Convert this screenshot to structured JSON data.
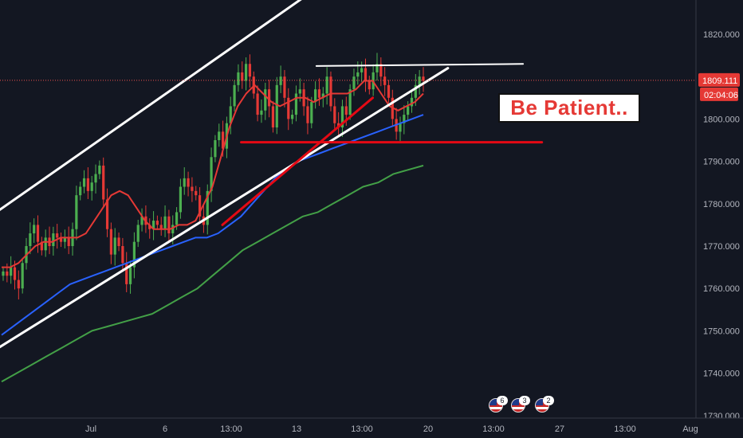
{
  "chart_data": {
    "type": "candlestick",
    "title": "",
    "ylim": [
      1730,
      1825
    ],
    "price_scale": {
      "ticks": [
        "1820.000",
        "1810.000",
        "1800.000",
        "1790.000",
        "1780.000",
        "1770.000",
        "1760.000",
        "1750.000",
        "1740.000",
        "1730.000"
      ],
      "current_price": "1809.111",
      "countdown": "02:04:06"
    },
    "time_scale": {
      "ticks": [
        "Jul",
        "6",
        "13:00",
        "13",
        "13:00",
        "20",
        "13:00",
        "27",
        "13:00",
        "Aug"
      ]
    },
    "ohlc_close_path": [
      1764,
      1763,
      1765,
      1762,
      1760,
      1766,
      1770,
      1773,
      1775,
      1771,
      1769,
      1772,
      1770,
      1773,
      1772,
      1771,
      1772,
      1770,
      1774,
      1782,
      1784,
      1786,
      1783,
      1785,
      1787,
      1789,
      1781,
      1774,
      1768,
      1772,
      1770,
      1766,
      1761,
      1765,
      1771,
      1775,
      1777,
      1775,
      1774,
      1776,
      1775,
      1774,
      1777,
      1773,
      1775,
      1778,
      1784,
      1786,
      1784,
      1783,
      1782,
      1777,
      1775,
      1783,
      1791,
      1795,
      1797,
      1793,
      1799,
      1803,
      1808,
      1811,
      1809,
      1813,
      1810,
      1806,
      1801,
      1802,
      1807,
      1803,
      1798,
      1808,
      1810,
      1805,
      1800,
      1801,
      1806,
      1807,
      1803,
      1799,
      1804,
      1807,
      1805,
      1806,
      1810,
      1803,
      1799,
      1798,
      1803,
      1801,
      1807,
      1810,
      1811,
      1812,
      1809,
      1807,
      1811,
      1813,
      1810,
      1808,
      1805,
      1800,
      1797,
      1799,
      1801,
      1803,
      1805,
      1808,
      1810,
      1809
    ],
    "series": [
      {
        "name": "",
        "color": "#e53935",
        "values": [
          1765,
          1765,
          1766,
          1768,
          1770,
          1771,
          1771,
          1772,
          1772,
          1772,
          1773,
          1776,
          1779,
          1782,
          1783,
          1782,
          1779,
          1776,
          1774,
          1774,
          1774,
          1775,
          1775,
          1776,
          1780,
          1784,
          1791,
          1798,
          1803,
          1806,
          1808,
          1806,
          1804,
          1803,
          1804,
          1805,
          1805,
          1804,
          1805,
          1806,
          1806,
          1806,
          1807,
          1809,
          1809,
          1806,
          1803,
          1802,
          1803,
          1804,
          1806
        ]
      },
      {
        "name": "",
        "color": "#2962ff",
        "values": [
          1749,
          1751,
          1753,
          1755,
          1757,
          1759,
          1761,
          1762,
          1763,
          1764,
          1765,
          1766,
          1767,
          1768,
          1769,
          1770,
          1771,
          1772,
          1772,
          1773,
          1775,
          1777,
          1780,
          1783,
          1786,
          1788,
          1790,
          1791,
          1792,
          1793,
          1794,
          1795,
          1796,
          1797,
          1798,
          1799,
          1800,
          1801
        ]
      },
      {
        "name": "",
        "color": "#43a047",
        "values": [
          1738,
          1740,
          1742,
          1744,
          1746,
          1748,
          1750,
          1751,
          1752,
          1753,
          1754,
          1756,
          1758,
          1760,
          1763,
          1766,
          1769,
          1771,
          1773,
          1775,
          1777,
          1778,
          1780,
          1782,
          1784,
          1785,
          1787,
          1788,
          1789
        ]
      }
    ],
    "drawings": {
      "channel_upper": {
        "from": [
          "Jun 25",
          1775
        ],
        "to": [
          "Jul 15",
          1837
        ]
      },
      "channel_lower": {
        "from": [
          "Jun 25",
          1743
        ],
        "to": [
          "Jul 20",
          1812
        ]
      },
      "resistance": {
        "from": [
          "Jul 13",
          1812.5
        ],
        "to": [
          "Jul 24",
          1813
        ]
      },
      "support": {
        "from": [
          "Jul 9",
          1794.5
        ],
        "to": [
          "Jul 25",
          1794.5
        ]
      },
      "trend_red": {
        "from": [
          "Jul 8",
          1775
        ],
        "to": [
          "Jul 16",
          1805
        ]
      }
    },
    "annotation": "Be Patient..",
    "grid": false,
    "event_counts": [
      "6",
      "3",
      "2"
    ]
  }
}
